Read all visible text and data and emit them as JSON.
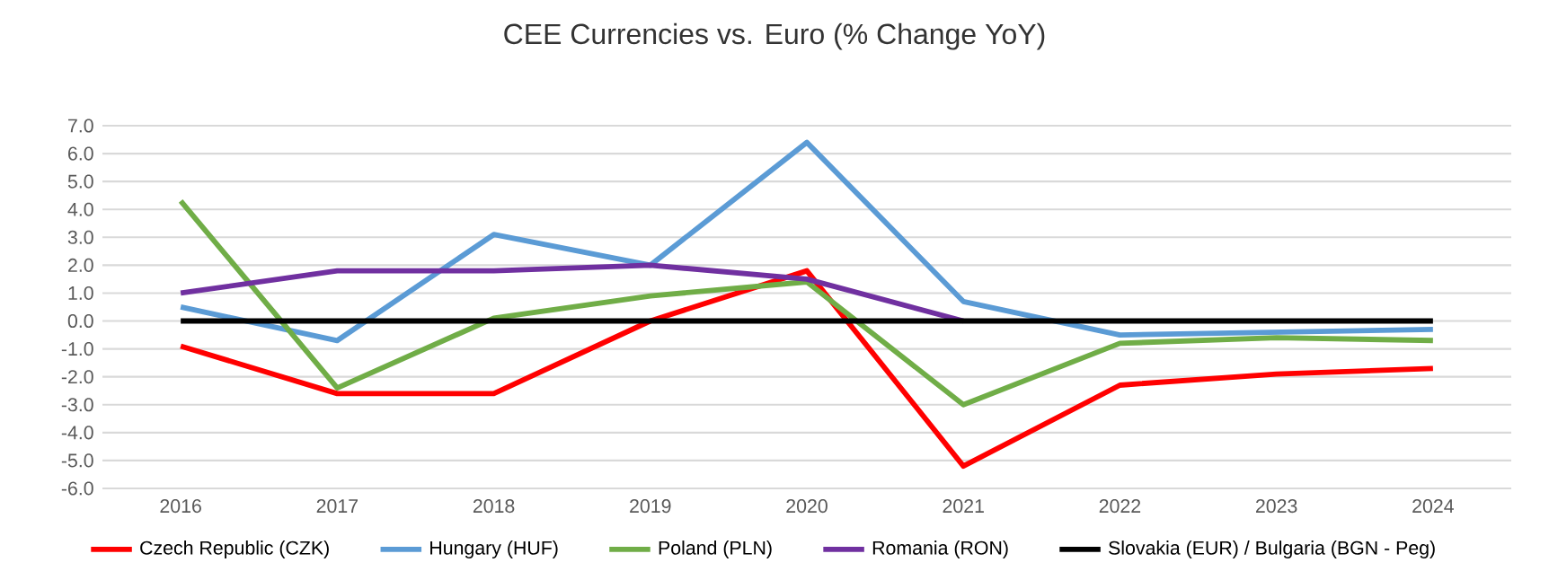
{
  "chart_data": {
    "type": "line",
    "title": "CEE Currencies vs. Euro (% Change YoY)",
    "categories": [
      "2016",
      "2017",
      "2018",
      "2019",
      "2020",
      "2021",
      "2022",
      "2023",
      "2024"
    ],
    "series": [
      {
        "name": "Czech Republic (CZK)",
        "color": "#ff0000",
        "values": [
          -0.9,
          -2.6,
          -2.6,
          0.0,
          1.8,
          -5.2,
          -2.3,
          -1.9,
          -1.7
        ]
      },
      {
        "name": "Hungary (HUF)",
        "color": "#5b9bd5",
        "values": [
          0.5,
          -0.7,
          3.1,
          2.0,
          6.4,
          0.7,
          -0.5,
          -0.4,
          -0.3
        ]
      },
      {
        "name": "Poland (PLN)",
        "color": "#70ad47",
        "values": [
          4.3,
          -2.4,
          0.1,
          0.9,
          1.4,
          -3.0,
          -0.8,
          -0.6,
          -0.7
        ]
      },
      {
        "name": "Romania (RON)",
        "color": "#7030a0",
        "values": [
          1.0,
          1.8,
          1.8,
          2.0,
          1.5,
          0.0,
          null,
          null,
          null
        ]
      },
      {
        "name": "Slovakia (EUR) / Bulgaria (BGN - Peg)",
        "color": "#000000",
        "values": [
          0,
          0,
          0,
          0,
          0,
          0,
          0,
          0,
          0
        ]
      }
    ],
    "ylim": [
      -6,
      7
    ],
    "yticks": [
      {
        "value": -6,
        "label": "-6.0"
      },
      {
        "value": -5,
        "label": "-5.0"
      },
      {
        "value": -4,
        "label": "-4.0"
      },
      {
        "value": -3,
        "label": "-3.0"
      },
      {
        "value": -2,
        "label": "-2.0"
      },
      {
        "value": -1,
        "label": "-1.0"
      },
      {
        "value": 0,
        "label": "0.0"
      },
      {
        "value": 1,
        "label": "1.0"
      },
      {
        "value": 2,
        "label": "2.0"
      },
      {
        "value": 3,
        "label": "3.0"
      },
      {
        "value": 4,
        "label": "4.0"
      },
      {
        "value": 5,
        "label": "5.0"
      },
      {
        "value": 6,
        "label": "6.0"
      },
      {
        "value": 7,
        "label": "7.0"
      }
    ],
    "grid": "y",
    "legend": "bottom",
    "marker": "none",
    "line_style": "solid"
  }
}
